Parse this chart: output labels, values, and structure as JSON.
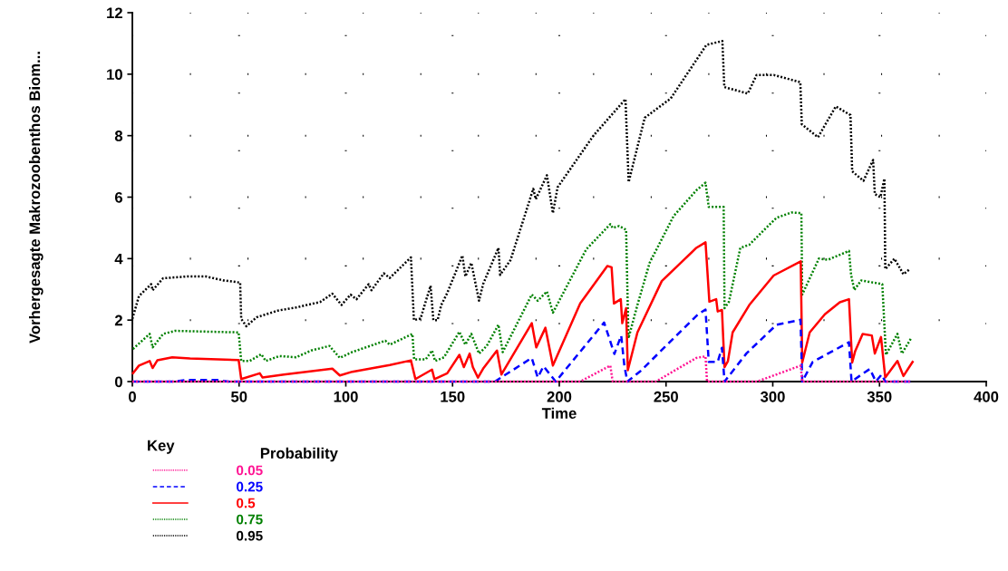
{
  "chart_data": {
    "type": "line",
    "xlabel": "Time",
    "ylabel": "Vorhergesagte Makrozoobenthos Biom...",
    "legend_title": "Probability",
    "annotations": [
      "Key"
    ],
    "xlim": [
      0,
      400
    ],
    "xticks": [
      0,
      50,
      100,
      150,
      200,
      250,
      300,
      350,
      400
    ],
    "ylim": [
      0,
      12
    ],
    "yticks": [
      0,
      2,
      4,
      6,
      8,
      10,
      12
    ],
    "grid": true,
    "legend": "bottom left",
    "marker": "none",
    "series": [
      {
        "name": "0.05",
        "color": "#ff1493",
        "line_style": "dotted",
        "x": [
          0,
          200,
          209.8,
          223.9,
          225,
          245.2,
          264.2,
          268.5,
          269.2,
          292.6,
          313.1,
          313.8,
          365
        ],
        "values": [
          0,
          0,
          0,
          0.52,
          0,
          0,
          0.77,
          0.82,
          0,
          0,
          0.52,
          0,
          0
        ]
      },
      {
        "name": "0.25",
        "color": "#0000ff",
        "line_style": "dashed",
        "x": [
          0,
          20,
          25,
          40,
          45,
          169.8,
          187.1,
          189.9,
          192.6,
          198.3,
          221,
          225.8,
          229,
          230.5,
          231.9,
          238,
          265,
          268.5,
          270,
          274.2,
          276.2,
          277.4,
          287.6,
          301.8,
          313,
          313.8,
          318.7,
          335.7,
          336.9,
          341.2,
          345.5,
          348.3,
          351,
          352.7,
          365
        ],
        "values": [
          0,
          0,
          0.05,
          0.05,
          0,
          0,
          0.77,
          0.13,
          0.5,
          0,
          1.92,
          0.9,
          1.5,
          0.5,
          0,
          0.34,
          2.19,
          2.34,
          0.64,
          0.64,
          1.1,
          0,
          0.91,
          1.85,
          2.01,
          0,
          0.64,
          1.28,
          0,
          0.21,
          0.41,
          0,
          0.23,
          0,
          0
        ]
      },
      {
        "name": "0.5",
        "color": "#ff0000",
        "line_style": "solid",
        "x": [
          0.3,
          3.1,
          8.1,
          9.5,
          11.7,
          18.7,
          27,
          49.8,
          51,
          59.7,
          61,
          71,
          93.7,
          97.2,
          103,
          120.6,
          130.5,
          132.6,
          140.4,
          141.5,
          147.5,
          153.2,
          155.3,
          158,
          159.5,
          161.9,
          164.3,
          170.8,
          172.9,
          187.1,
          189.2,
          193.5,
          197,
          209.8,
          222.5,
          224.5,
          225.6,
          228.8,
          229.5,
          231.3,
          232.1,
          236.6,
          248,
          264.2,
          268.5,
          270.3,
          273.5,
          274.2,
          276.2,
          277.4,
          279,
          281.2,
          289,
          300.4,
          313.1,
          313.8,
          317.3,
          324.4,
          331.4,
          335.7,
          337.2,
          338.6,
          342.1,
          346.4,
          347.8,
          350.7,
          352.7,
          358.4,
          361.2,
          365.5
        ],
        "values": [
          0.27,
          0.52,
          0.67,
          0.44,
          0.69,
          0.79,
          0.75,
          0.7,
          0.08,
          0.27,
          0.13,
          0.23,
          0.42,
          0.2,
          0.32,
          0.54,
          0.69,
          0.08,
          0.39,
          0.08,
          0.27,
          0.87,
          0.47,
          0.91,
          0.47,
          0.13,
          0.42,
          1.01,
          0.23,
          1.9,
          1.11,
          1.75,
          0.52,
          2.54,
          3.76,
          3.72,
          2.54,
          2.68,
          1.9,
          2.39,
          0.37,
          1.6,
          3.27,
          4.35,
          4.53,
          2.6,
          2.68,
          2.28,
          2.33,
          0.47,
          0.67,
          1.6,
          2.49,
          3.45,
          3.91,
          0.62,
          1.6,
          2.19,
          2.58,
          2.68,
          0.62,
          0.99,
          1.55,
          1.5,
          0.91,
          1.45,
          0.13,
          0.67,
          0.18,
          0.64
        ]
      },
      {
        "name": "0.75",
        "color": "#008000",
        "line_style": "dotted",
        "x": [
          0.3,
          8.1,
          9.5,
          14.4,
          20,
          49.8,
          51,
          55,
          60.4,
          62.5,
          68.9,
          76.7,
          83.8,
          92.3,
          97.2,
          103,
          118.5,
          120.6,
          131.2,
          132,
          137.4,
          140.4,
          141.8,
          146,
          153.2,
          156,
          158.8,
          162.4,
          166,
          171.5,
          173.5,
          187.1,
          189.9,
          194.2,
          197,
          212.6,
          223.9,
          225,
          228,
          231.3,
          232.4,
          236.6,
          242.3,
          253.6,
          264.2,
          268.5,
          270,
          277,
          277.4,
          279.5,
          284.8,
          289,
          297.5,
          301.8,
          308.8,
          313.4,
          313.8,
          321.6,
          325.8,
          335.7,
          336.7,
          338.2,
          341.4,
          351.3,
          353,
          358.4,
          360.5,
          364.8
        ],
        "values": [
          1.06,
          1.55,
          1.11,
          1.55,
          1.65,
          1.6,
          0.67,
          0.67,
          0.89,
          0.67,
          0.83,
          0.79,
          1.01,
          1.16,
          0.77,
          0.96,
          1.33,
          1.2,
          1.55,
          0.72,
          0.72,
          1.01,
          0.67,
          0.79,
          1.62,
          1.2,
          1.55,
          0.91,
          1.16,
          1.85,
          0.96,
          2.83,
          2.63,
          2.93,
          2.24,
          4.3,
          5.12,
          5.0,
          5.06,
          4.94,
          1.41,
          2.49,
          3.86,
          5.39,
          6.22,
          6.47,
          5.68,
          5.68,
          2.39,
          2.6,
          4.35,
          4.45,
          5.04,
          5.33,
          5.5,
          5.48,
          2.83,
          4.0,
          3.96,
          4.25,
          3.47,
          2.98,
          3.29,
          3.17,
          0.87,
          1.55,
          0.91,
          1.41
        ]
      },
      {
        "name": "0.95",
        "color": "#000000",
        "line_style": "dotted",
        "x": [
          0,
          3.1,
          5.9,
          8.8,
          9.5,
          14.4,
          25.8,
          34.3,
          42.8,
          50.5,
          51,
          53.4,
          58.2,
          68.2,
          76.7,
          88,
          93.7,
          98,
          102.2,
          105,
          110.7,
          112,
          117.8,
          120.6,
          130.5,
          131.9,
          135,
          139.7,
          141,
          143,
          144.7,
          147.5,
          154.6,
          156,
          158.8,
          162.4,
          164.3,
          171.5,
          172.3,
          177.2,
          187.8,
          189,
          194.2,
          197,
          199.2,
          216,
          231,
          232.5,
          240,
          252.2,
          268.9,
          276.4,
          277.3,
          288.3,
          292.4,
          300.6,
          312.9,
          313.6,
          321.2,
          329.5,
          336.4,
          337.2,
          342.5,
          347,
          347.8,
          350.4,
          352.3,
          352.7,
          357,
          361.2,
          364
        ],
        "values": [
          2.04,
          2.78,
          2.97,
          3.17,
          2.97,
          3.36,
          3.42,
          3.42,
          3.29,
          3.22,
          2.04,
          1.8,
          2.09,
          2.31,
          2.41,
          2.59,
          2.86,
          2.49,
          2.83,
          2.68,
          3.17,
          2.97,
          3.52,
          3.37,
          4.04,
          2.0,
          2.05,
          3.12,
          2.0,
          2.0,
          2.49,
          2.88,
          4.1,
          3.42,
          3.86,
          2.63,
          3.17,
          4.35,
          3.47,
          3.96,
          6.27,
          5.93,
          6.71,
          5.48,
          6.32,
          8.0,
          9.19,
          6.49,
          8.58,
          9.21,
          10.95,
          11.08,
          9.58,
          9.37,
          9.97,
          9.97,
          9.74,
          8.37,
          7.95,
          8.95,
          8.67,
          6.84,
          6.53,
          7.21,
          6.1,
          6.0,
          6.6,
          3.66,
          4.0,
          3.49,
          3.65
        ]
      }
    ]
  }
}
